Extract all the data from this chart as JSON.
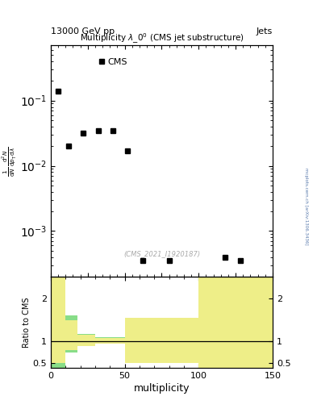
{
  "title_left": "13000 GeV pp",
  "title_right": "Jets",
  "main_title": "Multiplicity $\\lambda\\_0^0$ (CMS jet substructure)",
  "xlabel": "multiplicity",
  "ylabel_ratio": "Ratio to CMS",
  "watermark": "(CMS_2021_I1920187)",
  "arxiv": "mcplots.cern.ch [arXiv:1306.3436]",
  "cms_data_x": [
    5,
    12,
    22,
    32,
    42,
    52,
    62,
    80,
    118,
    128
  ],
  "cms_data_y": [
    0.14,
    0.02,
    0.032,
    0.035,
    0.035,
    0.017,
    0.00035,
    0.00035,
    0.0004,
    0.00035
  ],
  "legend_label": "CMS",
  "ylim_main": [
    0.0002,
    0.7
  ],
  "xlim": [
    0,
    150
  ],
  "ylim_ratio": [
    0.4,
    2.5
  ],
  "ratio_yticks": [
    0.5,
    1.0,
    2.0
  ],
  "green_color": "#88dd88",
  "yellow_color": "#eeee88",
  "green_bars_data": [
    [
      0,
      10,
      0.4,
      2.5
    ],
    [
      10,
      8,
      0.75,
      1.6
    ],
    [
      18,
      12,
      0.9,
      1.18
    ],
    [
      30,
      20,
      0.95,
      1.1
    ],
    [
      50,
      50,
      0.75,
      1.55
    ],
    [
      100,
      50,
      0.4,
      2.5
    ]
  ],
  "yellow_bars_data": [
    [
      0,
      10,
      0.5,
      2.5
    ],
    [
      10,
      8,
      0.8,
      1.5
    ],
    [
      18,
      12,
      0.9,
      1.15
    ],
    [
      30,
      20,
      0.96,
      1.08
    ],
    [
      50,
      50,
      0.5,
      1.55
    ],
    [
      100,
      50,
      0.4,
      2.5
    ]
  ]
}
